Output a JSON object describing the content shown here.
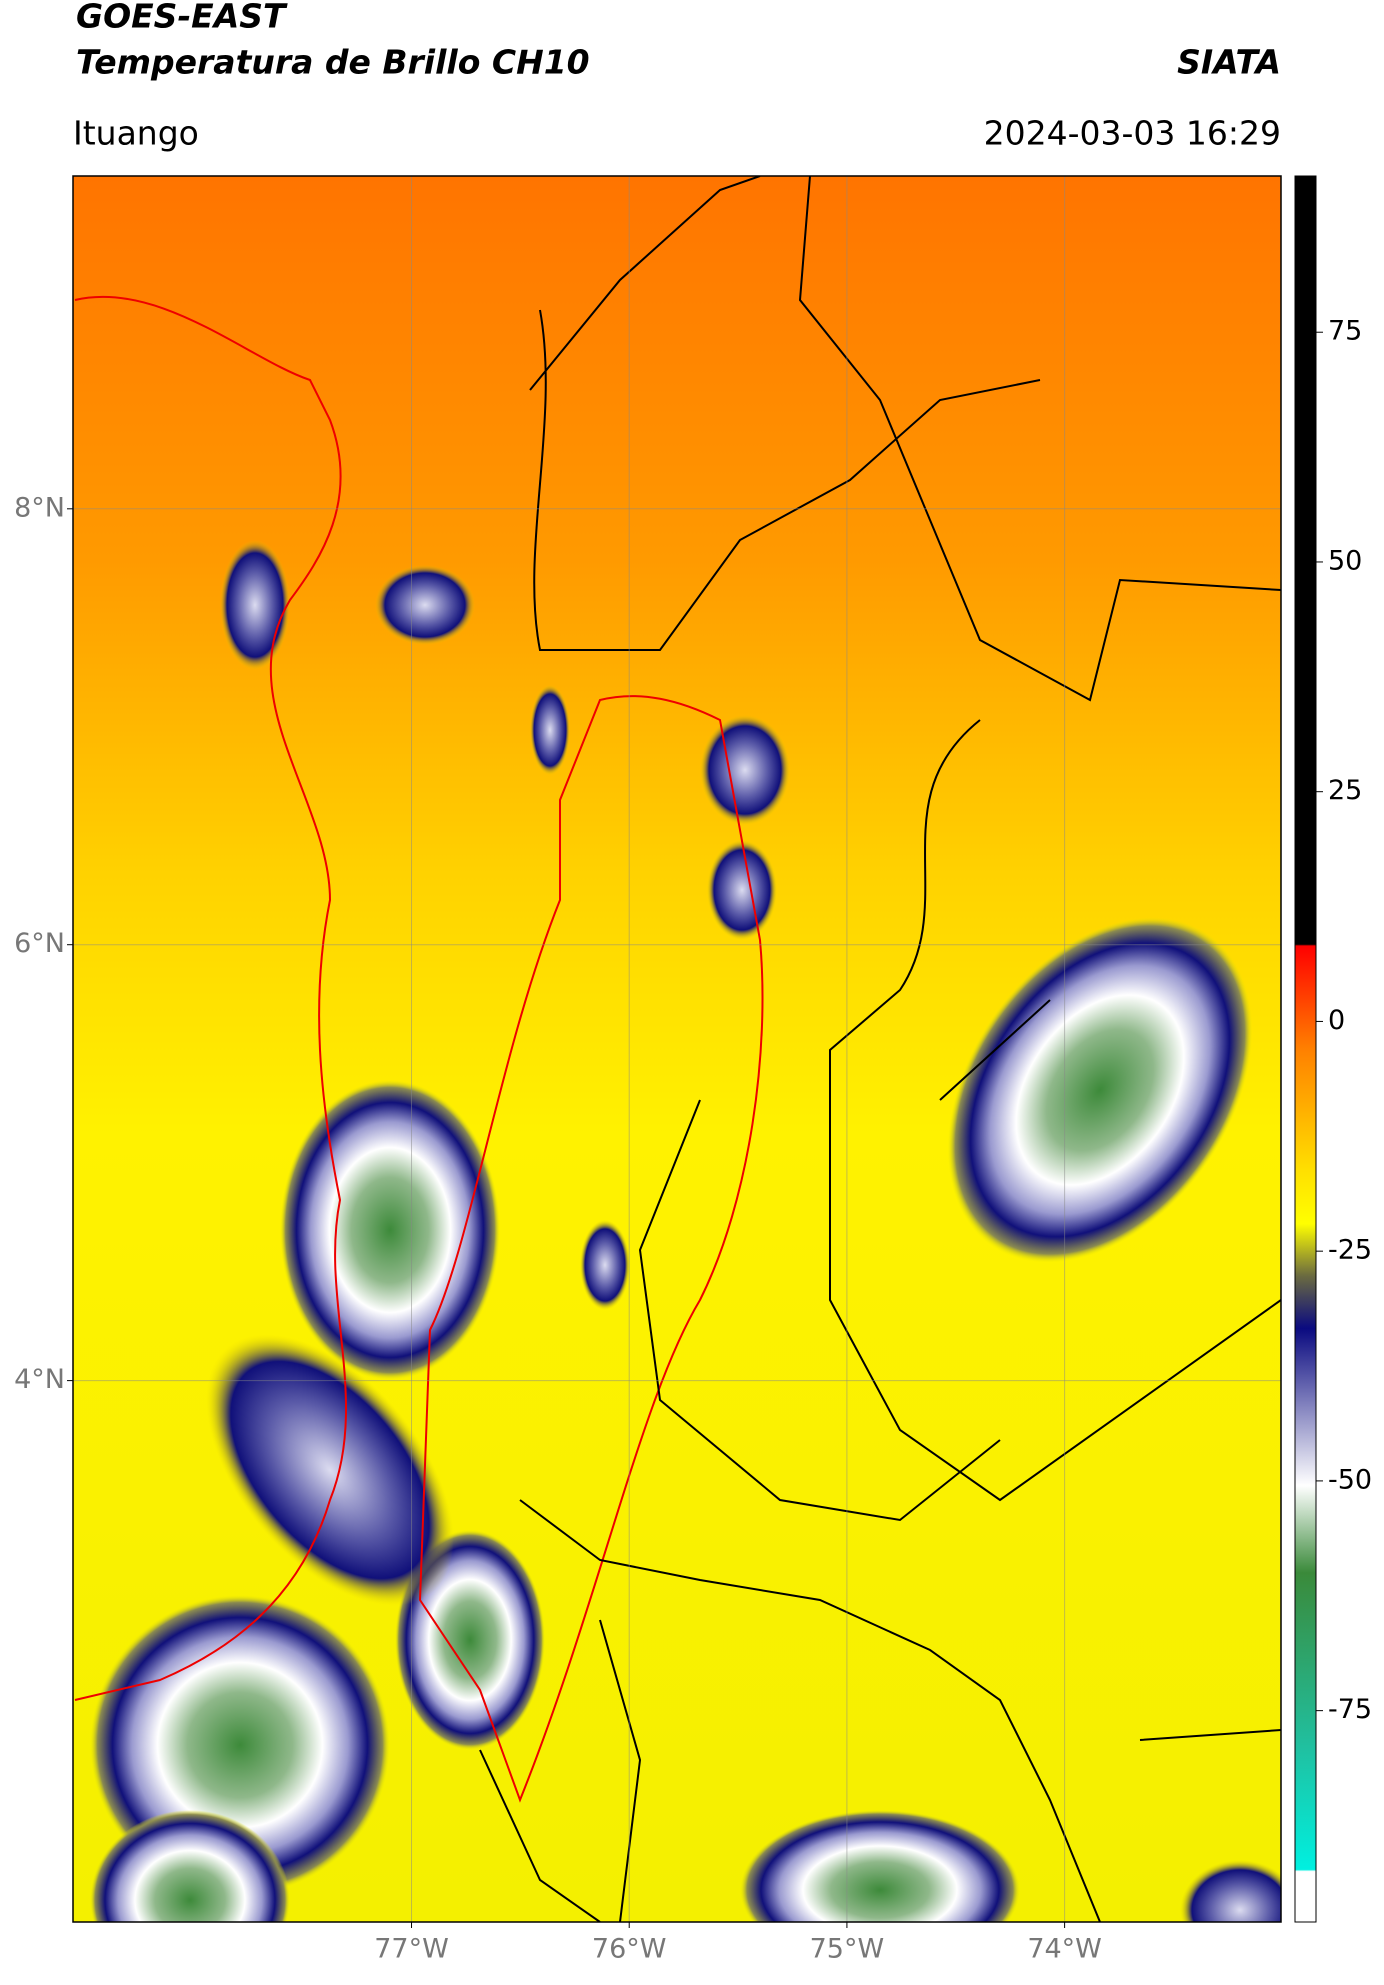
{
  "header": {
    "title": "GOES-EAST",
    "subtitle": "Temperatura de Brillo CH10",
    "agency": "SIATA",
    "location": "Ituango",
    "datetime": "2024-03-03 16:29"
  },
  "map": {
    "xlim": [
      -78.555,
      -73.006
    ],
    "ylim": [
      1.516,
      9.527
    ],
    "xticks": [
      {
        "value": -77,
        "label": "77°W"
      },
      {
        "value": -76,
        "label": "76°W"
      },
      {
        "value": -75,
        "label": "75°W"
      },
      {
        "value": -74,
        "label": "74°W"
      }
    ],
    "yticks": [
      {
        "value": 4,
        "label": "4°N"
      },
      {
        "value": 6,
        "label": "6°N"
      },
      {
        "value": 8,
        "label": "8°N"
      }
    ],
    "grid": true
  },
  "colorbar": {
    "lim": [
      -98,
      92
    ],
    "ticks": [
      -75,
      -50,
      -25,
      0,
      25,
      50,
      75
    ]
  }
}
